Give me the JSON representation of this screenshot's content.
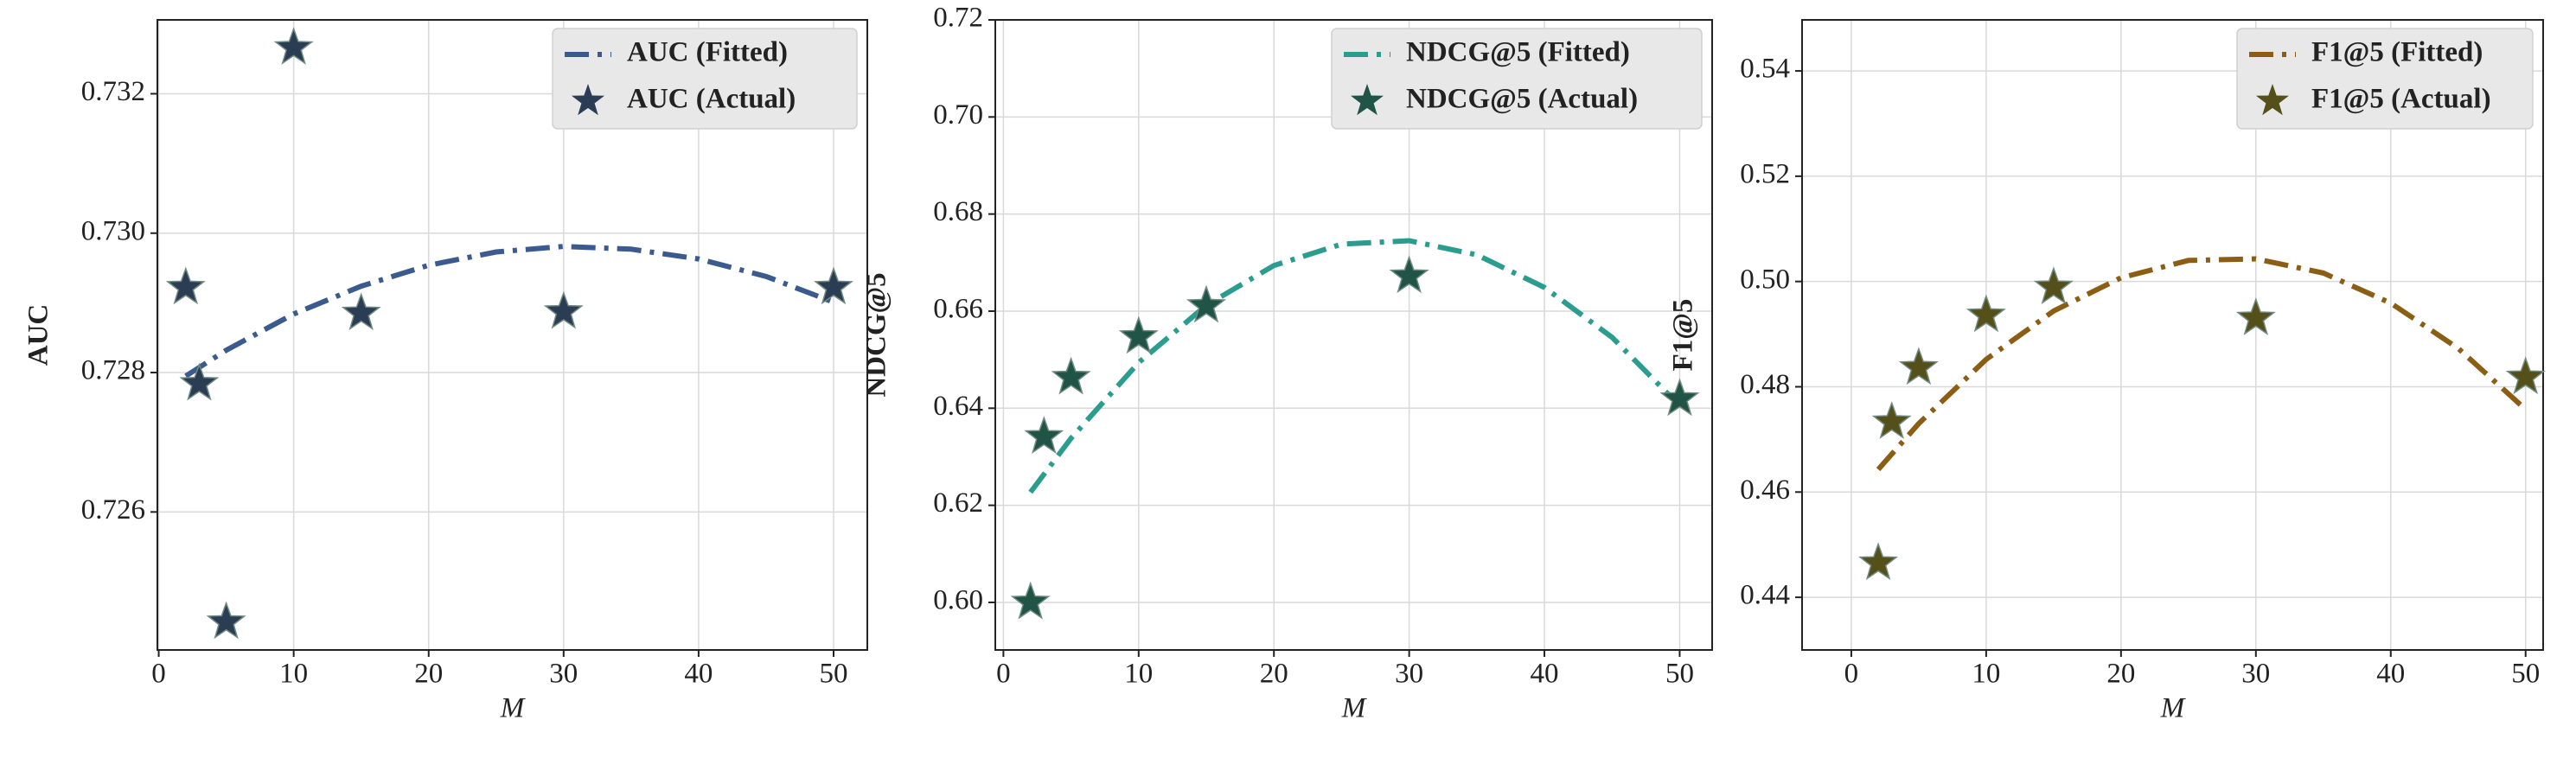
{
  "chart_data": [
    {
      "type": "line",
      "xlabel": "M",
      "ylabel": "AUC",
      "grid": true,
      "legend": "upper right",
      "xlim": [
        -0.1,
        52.5
      ],
      "xticks": [
        0,
        10,
        20,
        30,
        40,
        50
      ],
      "ylim": [
        0.72402,
        0.73306
      ],
      "yticks": [
        0.726,
        0.728,
        {
          "value": 0.73,
          "label": "0.730"
        },
        0.732
      ],
      "series": [
        {
          "name": "AUC (Fitted)",
          "type": "line",
          "color": "#3b5b8e",
          "x": [
            2,
            5,
            10,
            15,
            20,
            25,
            30,
            35,
            40,
            45,
            50
          ],
          "values": [
            0.72795,
            0.72832,
            0.72884,
            0.72924,
            0.72954,
            0.72973,
            0.72981,
            0.72977,
            0.72963,
            0.72938,
            0.72901
          ]
        },
        {
          "name": "AUC (Actual)",
          "type": "scatter",
          "color": "#2b3d55",
          "x": [
            2,
            3,
            5,
            10,
            15,
            30,
            50
          ],
          "values": [
            0.72922,
            0.72784,
            0.72442,
            0.73266,
            0.72885,
            0.72887,
            0.72922
          ]
        }
      ]
    },
    {
      "type": "line",
      "xlabel": "M",
      "ylabel": "NDCG@5",
      "grid": true,
      "legend": "upper right",
      "xlim": [
        -0.6,
        52.4
      ],
      "xticks": [
        0,
        10,
        20,
        30,
        40,
        50
      ],
      "ylim": [
        0.5902,
        0.72
      ],
      "yticks": [
        {
          "value": 0.6,
          "label": "0.60"
        },
        0.62,
        0.64,
        0.66,
        0.68,
        {
          "value": 0.7,
          "label": "0.70"
        },
        0.72
      ],
      "series": [
        {
          "name": "NDCG@5 (Fitted)",
          "type": "line",
          "color": "#2a9d8f",
          "x": [
            2,
            5,
            10,
            15,
            20,
            25,
            30,
            35,
            40,
            45,
            50
          ],
          "values": [
            0.6227,
            0.6338,
            0.6494,
            0.6612,
            0.6694,
            0.6738,
            0.6745,
            0.6716,
            0.6649,
            0.6546,
            0.6405
          ]
        },
        {
          "name": "NDCG@5 (Actual)",
          "type": "scatter",
          "color": "#1f5446",
          "x": [
            2,
            3,
            5,
            10,
            15,
            30,
            50
          ],
          "values": [
            0.6,
            0.6341,
            0.6463,
            0.6547,
            0.6611,
            0.6672,
            0.6419
          ]
        }
      ]
    },
    {
      "type": "line",
      "xlabel": "M",
      "ylabel": "F1@5",
      "grid": true,
      "legend": "upper right",
      "xlim": [
        -3.65,
        51.3
      ],
      "xticks": [
        0,
        10,
        20,
        30,
        40,
        50
      ],
      "ylim": [
        0.43,
        0.5497
      ],
      "yticks": [
        0.44,
        0.46,
        0.48,
        {
          "value": 0.5,
          "label": "0.50"
        },
        0.52,
        0.54
      ],
      "series": [
        {
          "name": "F1@5 (Fitted)",
          "type": "line",
          "color": "#8b5e14",
          "x": [
            2,
            5,
            10,
            15,
            20,
            25,
            30,
            35,
            40,
            45,
            50
          ],
          "values": [
            0.4643,
            0.473,
            0.4852,
            0.4944,
            0.5007,
            0.504,
            0.5043,
            0.5016,
            0.4959,
            0.4873,
            0.4757
          ]
        },
        {
          "name": "F1@5 (Actual)",
          "type": "scatter",
          "color": "#55501a",
          "x": [
            2,
            3,
            5,
            10,
            15,
            30,
            50
          ],
          "values": [
            0.4465,
            0.4733,
            0.4836,
            0.4936,
            0.4989,
            0.493,
            0.4818
          ]
        }
      ]
    }
  ]
}
